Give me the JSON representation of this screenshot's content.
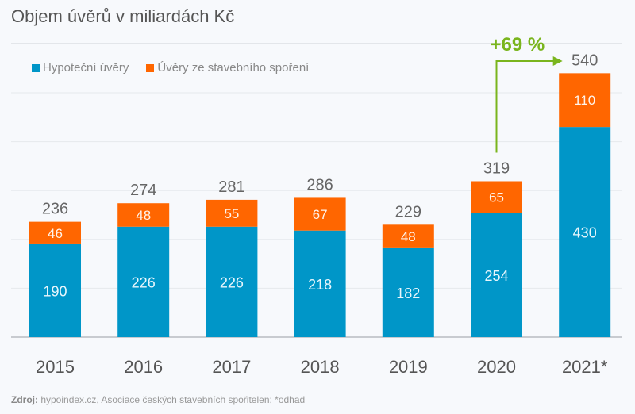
{
  "title": "Objem úvěrů v miliardách Kč",
  "legend": [
    {
      "label": "Hypoteční úvěry",
      "color": "#0096c8"
    },
    {
      "label": "Úvěry ze stavebního spoření",
      "color": "#ff6600"
    }
  ],
  "source": {
    "label": "Zdroj:",
    "text": " hypoindex.cz, Asociace českých stavebních spořitelen; *odhad"
  },
  "annotation": {
    "label": "+69 %",
    "color": "#7ab51d",
    "from": "2020",
    "to": "2021*"
  },
  "chart_data": {
    "type": "bar",
    "stacked": true,
    "title": "Objem úvěrů v miliardách Kč",
    "xlabel": "",
    "ylabel": "",
    "categories": [
      "2015",
      "2016",
      "2017",
      "2018",
      "2019",
      "2020",
      "2021*"
    ],
    "series": [
      {
        "name": "Hypoteční úvěry",
        "color": "#0096c8",
        "values": [
          190,
          226,
          226,
          218,
          182,
          254,
          430
        ]
      },
      {
        "name": "Úvěry ze stavebního spoření",
        "color": "#ff6600",
        "values": [
          46,
          48,
          55,
          67,
          48,
          65,
          110
        ]
      }
    ],
    "totals": [
      236,
      274,
      281,
      286,
      229,
      319,
      540
    ],
    "ylim": [
      0,
      500
    ],
    "gridlines": [
      100,
      200,
      300,
      400,
      500
    ],
    "grid": true,
    "legend_position": "top-left"
  }
}
